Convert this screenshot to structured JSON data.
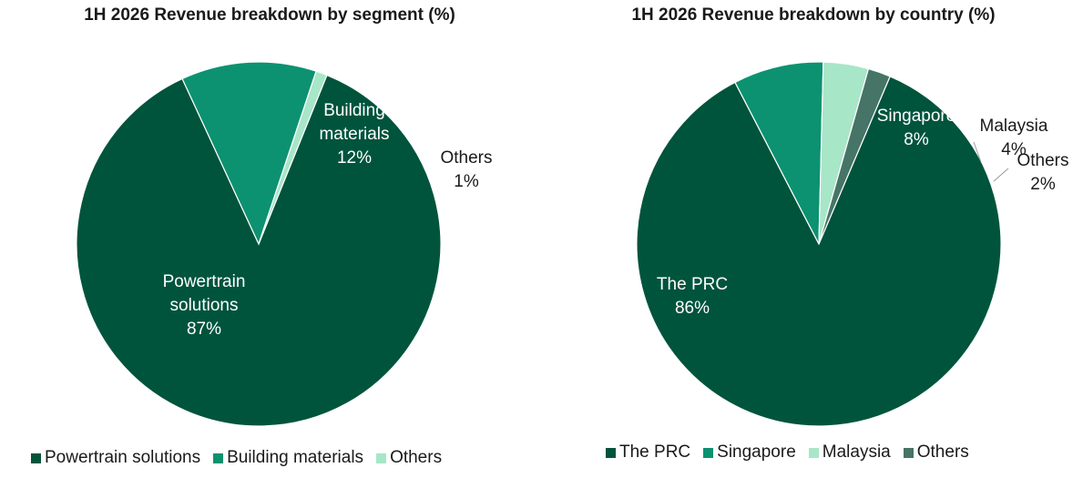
{
  "chart_data": [
    {
      "type": "pie",
      "title": "1H 2026 Revenue breakdown by segment (%)",
      "slices": [
        {
          "label_lines": [
            "Powertrain",
            "solutions"
          ],
          "legend": "Powertrain solutions",
          "value": 87,
          "value_label": "87%",
          "color": "#00543c"
        },
        {
          "label_lines": [
            "Building",
            "materials"
          ],
          "legend": "Building materials",
          "value": 12,
          "value_label": "12%",
          "color": "#0c9270"
        },
        {
          "label_lines": [
            "Others"
          ],
          "legend": "Others",
          "value": 1,
          "value_label": "1%",
          "color": "#a8e6c8"
        }
      ],
      "legend_position": "bottom"
    },
    {
      "type": "pie",
      "title": "1H 2026 Revenue breakdown by country (%)",
      "slices": [
        {
          "label_lines": [
            "The PRC"
          ],
          "legend": "The PRC",
          "value": 86,
          "value_label": "86%",
          "color": "#00543c"
        },
        {
          "label_lines": [
            "Singapore"
          ],
          "legend": "Singapore",
          "value": 8,
          "value_label": "8%",
          "color": "#0c9270"
        },
        {
          "label_lines": [
            "Malaysia"
          ],
          "legend": "Malaysia",
          "value": 4,
          "value_label": "4%",
          "color": "#a8e6c8"
        },
        {
          "label_lines": [
            "Others"
          ],
          "legend": "Others",
          "value": 2,
          "value_label": "2%",
          "color": "#467466"
        }
      ],
      "legend_position": "bottom"
    }
  ]
}
